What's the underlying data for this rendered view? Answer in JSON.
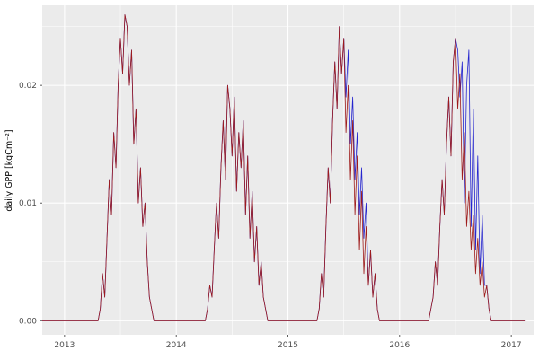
{
  "chart_data": {
    "type": "line",
    "title": "",
    "xlabel": "",
    "ylabel": "daily GPP [kgCm⁻²]",
    "xlim": [
      2012.8,
      2017.2
    ],
    "ylim": [
      -0.0012,
      0.0268
    ],
    "grid": true,
    "legend": "none",
    "panel_background": "#EBEBEB",
    "grid_color": "#FFFFFF",
    "axis_text_color": "#4D4D4D",
    "tick_mark_color": "#333333",
    "x_ticks": [
      2013,
      2014,
      2015,
      2016,
      2017
    ],
    "x_tick_labels": [
      "2013",
      "2014",
      "2015",
      "2016",
      "2017"
    ],
    "x_minor_ticks": [
      2013.5,
      2014.5,
      2015.5,
      2016.5
    ],
    "y_ticks": [
      0,
      0.01,
      0.02
    ],
    "y_tick_labels": [
      "0.00",
      "0.01",
      "0.02"
    ],
    "y_minor_ticks": [
      0.005,
      0.015,
      0.025
    ],
    "x_start": 2012.8,
    "x_step": 0.02,
    "series": [
      {
        "name": "gpp-series-blue",
        "color": "#2525CE",
        "values": [
          0,
          0,
          0,
          0,
          0,
          0,
          0,
          0,
          0,
          0,
          0,
          0,
          0,
          0,
          0,
          0,
          0,
          0,
          0,
          0,
          0,
          0,
          0,
          0,
          0,
          0,
          0.001,
          0.004,
          0.002,
          0.007,
          0.012,
          0.009,
          0.016,
          0.013,
          0.02,
          0.024,
          0.021,
          0.026,
          0.025,
          0.02,
          0.023,
          0.015,
          0.018,
          0.01,
          0.013,
          0.008,
          0.01,
          0.005,
          0.002,
          0.001,
          0,
          0,
          0,
          0,
          0,
          0,
          0,
          0,
          0,
          0,
          0,
          0,
          0,
          0,
          0,
          0,
          0,
          0,
          0,
          0,
          0,
          0,
          0,
          0,
          0.001,
          0.003,
          0.002,
          0.006,
          0.01,
          0.007,
          0.013,
          0.017,
          0.012,
          0.02,
          0.018,
          0.014,
          0.019,
          0.011,
          0.016,
          0.013,
          0.017,
          0.009,
          0.014,
          0.007,
          0.011,
          0.005,
          0.008,
          0.003,
          0.005,
          0.002,
          0.001,
          0,
          0,
          0,
          0,
          0,
          0,
          0,
          0,
          0,
          0,
          0,
          0,
          0,
          0,
          0,
          0,
          0,
          0,
          0,
          0,
          0,
          0,
          0,
          0.001,
          0.004,
          0.002,
          0.008,
          0.013,
          0.01,
          0.017,
          0.022,
          0.018,
          0.025,
          0.021,
          0.024,
          0.019,
          0.023,
          0.015,
          0.019,
          0.012,
          0.016,
          0.009,
          0.013,
          0.007,
          0.01,
          0.003,
          0.006,
          0.002,
          0.004,
          0.001,
          0,
          0,
          0,
          0,
          0,
          0,
          0,
          0,
          0,
          0,
          0,
          0,
          0,
          0,
          0,
          0,
          0,
          0,
          0,
          0,
          0,
          0,
          0,
          0.001,
          0.002,
          0.005,
          0.003,
          0.008,
          0.012,
          0.009,
          0.015,
          0.019,
          0.014,
          0.022,
          0.024,
          0.023,
          0.019,
          0.022,
          0.01,
          0.02,
          0.023,
          0.008,
          0.018,
          0.006,
          0.014,
          0.004,
          0.009,
          0.003,
          0.003,
          0.001,
          0,
          0,
          0,
          0,
          0,
          0,
          0,
          0,
          0,
          0,
          0,
          0,
          0,
          0,
          0,
          0
        ]
      },
      {
        "name": "gpp-series-darkred",
        "color": "#9E1B1B",
        "values": [
          0,
          0,
          0,
          0,
          0,
          0,
          0,
          0,
          0,
          0,
          0,
          0,
          0,
          0,
          0,
          0,
          0,
          0,
          0,
          0,
          0,
          0,
          0,
          0,
          0,
          0,
          0.001,
          0.004,
          0.002,
          0.007,
          0.012,
          0.009,
          0.016,
          0.013,
          0.02,
          0.024,
          0.021,
          0.026,
          0.025,
          0.02,
          0.023,
          0.015,
          0.018,
          0.01,
          0.013,
          0.008,
          0.01,
          0.005,
          0.002,
          0.001,
          0,
          0,
          0,
          0,
          0,
          0,
          0,
          0,
          0,
          0,
          0,
          0,
          0,
          0,
          0,
          0,
          0,
          0,
          0,
          0,
          0,
          0,
          0,
          0,
          0.001,
          0.003,
          0.002,
          0.006,
          0.01,
          0.007,
          0.013,
          0.017,
          0.012,
          0.02,
          0.018,
          0.014,
          0.019,
          0.011,
          0.016,
          0.013,
          0.017,
          0.009,
          0.014,
          0.007,
          0.011,
          0.005,
          0.008,
          0.003,
          0.005,
          0.002,
          0.001,
          0,
          0,
          0,
          0,
          0,
          0,
          0,
          0,
          0,
          0,
          0,
          0,
          0,
          0,
          0,
          0,
          0,
          0,
          0,
          0,
          0,
          0,
          0,
          0.001,
          0.004,
          0.002,
          0.008,
          0.013,
          0.01,
          0.017,
          0.022,
          0.018,
          0.025,
          0.021,
          0.024,
          0.016,
          0.02,
          0.012,
          0.017,
          0.009,
          0.014,
          0.006,
          0.011,
          0.004,
          0.008,
          0.003,
          0.006,
          0.002,
          0.004,
          0.001,
          0,
          0,
          0,
          0,
          0,
          0,
          0,
          0,
          0,
          0,
          0,
          0,
          0,
          0,
          0,
          0,
          0,
          0,
          0,
          0,
          0,
          0,
          0,
          0.001,
          0.002,
          0.005,
          0.003,
          0.008,
          0.012,
          0.009,
          0.015,
          0.019,
          0.014,
          0.022,
          0.024,
          0.018,
          0.021,
          0.012,
          0.016,
          0.008,
          0.011,
          0.006,
          0.009,
          0.004,
          0.007,
          0.003,
          0.005,
          0.002,
          0.003,
          0.001,
          0,
          0,
          0,
          0,
          0,
          0,
          0,
          0,
          0,
          0,
          0,
          0,
          0,
          0,
          0,
          0
        ]
      }
    ]
  }
}
